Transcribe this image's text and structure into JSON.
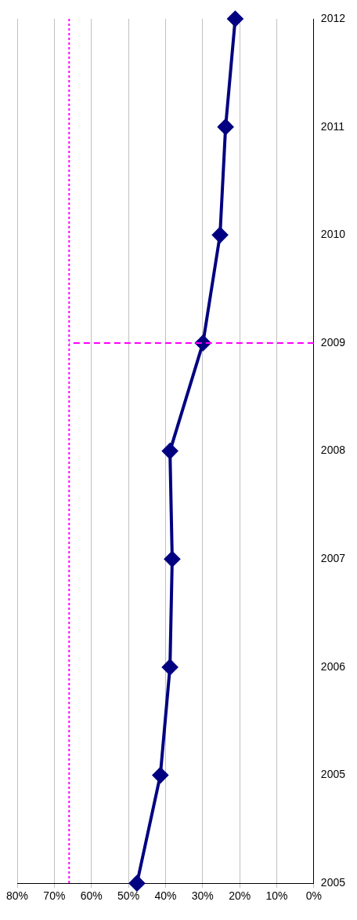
{
  "chart_data": {
    "type": "line",
    "orientation": "horizontal",
    "categories": [
      "2012",
      "2011",
      "2010",
      "2009",
      "2008",
      "2007",
      "2006",
      "2005",
      "2005"
    ],
    "series": [
      {
        "color": "#000080",
        "values": [
          21.2,
          23.8,
          25.3,
          29.9,
          38.8,
          38.2,
          38.8,
          41.4,
          47.7
        ]
      }
    ],
    "xlim": [
      80,
      0
    ],
    "xticks": [
      {
        "value": 0,
        "label": "0%"
      },
      {
        "value": 10,
        "label": "10%"
      },
      {
        "value": 20,
        "label": "20%"
      },
      {
        "value": 30,
        "label": "30%"
      },
      {
        "value": 40,
        "label": "40%"
      },
      {
        "value": 50,
        "label": "50%"
      },
      {
        "value": 60,
        "label": "60%"
      },
      {
        "value": 70,
        "label": "70%"
      },
      {
        "value": 80,
        "label": "80%"
      }
    ],
    "ref_lines": [
      {
        "axis": "x",
        "value": 66,
        "color": "#ff00ff",
        "line_style": "dotted"
      },
      {
        "axis": "y",
        "value": "2009",
        "color": "#ff00ff",
        "line_style": "dashed"
      }
    ],
    "grid": "x",
    "legend": false,
    "marker": "diamond",
    "line_style": "solid"
  }
}
